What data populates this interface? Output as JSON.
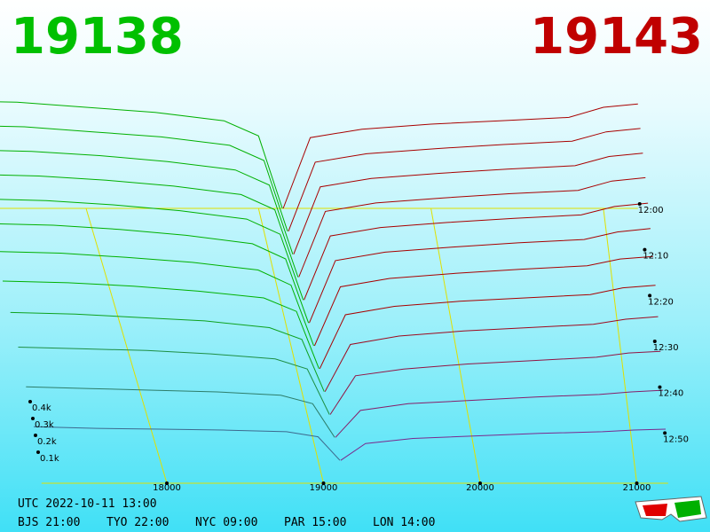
{
  "chart_data": {
    "type": "depth3d",
    "best_bid": 19138,
    "best_ask": 19143,
    "bid_color": "#00b000",
    "ask_color": "#a80000",
    "grid_color": "#e0e000",
    "xticks": [
      18000,
      19000,
      20000,
      21000
    ],
    "zticks": [
      {
        "value": 100,
        "label": "0.1k"
      },
      {
        "value": 200,
        "label": "0.2k"
      },
      {
        "value": 300,
        "label": "0.3k"
      },
      {
        "value": 400,
        "label": "0.4k"
      }
    ],
    "tticks": [
      {
        "value": 720,
        "label": "12:00"
      },
      {
        "value": 730,
        "label": "12:10"
      },
      {
        "value": 740,
        "label": "12:20"
      },
      {
        "value": 750,
        "label": "12:30"
      },
      {
        "value": 760,
        "label": "12:40"
      },
      {
        "value": 770,
        "label": "12:50"
      }
    ],
    "tlim": [
      720,
      780
    ],
    "bid_prices": [
      17200,
      17600,
      18000,
      18400,
      18800,
      19000,
      19138
    ],
    "ask_prices": [
      19143,
      19300,
      19600,
      20000,
      20400,
      20800,
      21000,
      21200
    ],
    "snapshots": [
      {
        "time": 720,
        "bids": [
          640,
          630,
          600,
          570,
          520,
          430,
          0
        ],
        "asks": [
          0,
          420,
          470,
          500,
          520,
          540,
          600,
          620
        ]
      },
      {
        "time": 725,
        "bids": [
          630,
          620,
          590,
          560,
          510,
          420,
          0
        ],
        "asks": [
          0,
          410,
          460,
          490,
          515,
          535,
          590,
          610
        ]
      },
      {
        "time": 730,
        "bids": [
          620,
          610,
          585,
          550,
          500,
          410,
          0
        ],
        "asks": [
          0,
          400,
          450,
          480,
          505,
          525,
          580,
          600
        ]
      },
      {
        "time": 735,
        "bids": [
          610,
          600,
          575,
          540,
          490,
          400,
          0
        ],
        "asks": [
          0,
          390,
          440,
          470,
          495,
          515,
          570,
          590
        ]
      },
      {
        "time": 740,
        "bids": [
          600,
          590,
          565,
          530,
          480,
          390,
          0
        ],
        "asks": [
          0,
          380,
          430,
          460,
          485,
          505,
          555,
          575
        ]
      },
      {
        "time": 745,
        "bids": [
          590,
          580,
          555,
          520,
          470,
          380,
          0
        ],
        "asks": [
          0,
          370,
          420,
          450,
          475,
          495,
          540,
          560
        ]
      },
      {
        "time": 750,
        "bids": [
          560,
          550,
          525,
          495,
          450,
          360,
          0
        ],
        "asks": [
          0,
          350,
          400,
          430,
          455,
          475,
          515,
          530
        ]
      },
      {
        "time": 755,
        "bids": [
          520,
          510,
          490,
          460,
          420,
          340,
          0
        ],
        "asks": [
          0,
          320,
          370,
          400,
          420,
          440,
          480,
          495
        ]
      },
      {
        "time": 760,
        "bids": [
          470,
          460,
          440,
          420,
          380,
          310,
          0
        ],
        "asks": [
          0,
          280,
          330,
          360,
          380,
          400,
          430,
          445
        ]
      },
      {
        "time": 765,
        "bids": [
          400,
          390,
          380,
          360,
          330,
          270,
          0
        ],
        "asks": [
          0,
          230,
          270,
          300,
          320,
          340,
          365,
          375
        ]
      },
      {
        "time": 770,
        "bids": [
          300,
          290,
          280,
          270,
          250,
          200,
          0
        ],
        "asks": [
          0,
          160,
          200,
          220,
          240,
          255,
          270,
          280
        ]
      },
      {
        "time": 775,
        "bids": [
          200,
          190,
          185,
          180,
          170,
          140,
          0
        ],
        "asks": [
          0,
          100,
          130,
          145,
          160,
          170,
          180,
          185
        ]
      }
    ],
    "footer": {
      "utc": "UTC 2022-10-11 13:00",
      "cities": [
        "BJS 21:00",
        "TYO 22:00",
        "NYC 09:00",
        "PAR 15:00",
        "LON 14:00"
      ]
    }
  }
}
